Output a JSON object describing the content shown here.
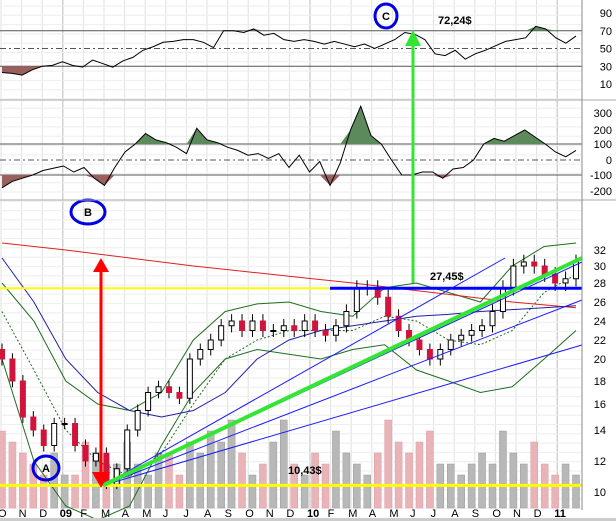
{
  "chart_data": {
    "type": "line",
    "title": "",
    "price_scale": "log",
    "grid": true,
    "x_tick_labels": [
      "O",
      "N",
      "D",
      "09",
      "F",
      "M",
      "A",
      "M",
      "J",
      "J",
      "A",
      "S",
      "O",
      "N",
      "D",
      "10",
      "F",
      "M",
      "A",
      "M",
      "J",
      "J",
      "A",
      "S",
      "O",
      "N",
      "D",
      "11"
    ],
    "rsi": {
      "y_ticks": [
        90,
        70,
        50,
        30,
        10
      ],
      "levels": [
        70,
        50,
        30
      ],
      "values": [
        23,
        22,
        20,
        26,
        30,
        31,
        35,
        31,
        29,
        37,
        33,
        29,
        36,
        40,
        48,
        52,
        57,
        58,
        60,
        60,
        57,
        51,
        70,
        70,
        68,
        72,
        65,
        67,
        60,
        58,
        60,
        58,
        55,
        58,
        55,
        52,
        55,
        50,
        55,
        60,
        68,
        66,
        60,
        44,
        42,
        48,
        38,
        44,
        48,
        53,
        58,
        60,
        62,
        75,
        72,
        62,
        56,
        64
      ]
    },
    "cci": {
      "y_ticks": [
        300,
        200,
        100,
        0,
        -100,
        -200
      ],
      "levels": [
        100,
        0,
        -100
      ],
      "values": [
        -180,
        -140,
        -120,
        -100,
        -70,
        -55,
        -40,
        -80,
        -50,
        -120,
        -165,
        -50,
        50,
        100,
        175,
        130,
        110,
        80,
        40,
        210,
        130,
        110,
        80,
        60,
        30,
        40,
        10,
        40,
        -50,
        30,
        -80,
        -10,
        -165,
        -20,
        200,
        330,
        160,
        100,
        0,
        -100,
        -100,
        -80,
        -80,
        -120,
        -60,
        -50,
        0,
        100,
        140,
        120,
        160,
        200,
        150,
        100,
        50,
        20,
        60
      ]
    },
    "price": {
      "y_ticks": [
        32,
        30,
        28,
        26,
        24,
        22,
        20,
        18,
        16,
        14,
        12,
        10
      ],
      "closes": [
        20,
        18,
        15,
        14,
        13,
        14.5,
        14.5,
        13,
        12,
        12.5,
        10.5,
        11.5,
        14,
        15.5,
        17,
        17.5,
        17,
        16.5,
        20,
        21,
        22,
        23.5,
        24,
        23,
        24,
        23,
        23,
        23.5,
        23,
        24,
        23,
        22.5,
        23.5,
        25,
        27.5,
        27.5,
        26.5,
        24.5,
        23,
        22,
        21,
        20,
        21,
        22,
        22.5,
        23,
        23.5,
        25,
        27.5,
        30,
        30.5,
        30,
        29,
        28,
        28.5,
        30.5
      ],
      "ma_red": [
        33,
        32.5,
        32,
        31.5,
        31,
        30.5,
        30,
        29.6,
        29.2,
        28.8,
        28.4,
        28,
        27.6,
        27.2,
        26.8,
        26.4,
        26,
        25.7,
        25.4
      ],
      "ma_blue": [
        31,
        26,
        20,
        17,
        15.5,
        15,
        15.5,
        17,
        20,
        22,
        23,
        23.5,
        24,
        24.5,
        24.7,
        25,
        25.2,
        25.4,
        25.6
      ],
      "bb_upper": [
        28,
        24,
        18,
        16,
        15.5,
        17,
        22,
        25,
        25.8,
        26,
        25,
        24.5,
        27.5,
        28,
        27,
        26,
        30,
        32.5,
        33
      ],
      "bb_lower": [
        20,
        12,
        9,
        8,
        9,
        13,
        17,
        20,
        21,
        20.5,
        20,
        21,
        21.5,
        19,
        18,
        17,
        17.5,
        20,
        23
      ],
      "bb_mid": [
        25,
        19,
        14,
        12,
        11,
        12.5,
        16,
        20,
        22,
        23,
        23,
        23,
        24.5,
        24,
        22,
        21.5,
        23,
        27,
        29
      ]
    },
    "volume": [
      7,
      6,
      5,
      4,
      3,
      5,
      3,
      3,
      6,
      5,
      4,
      4,
      6,
      4,
      3,
      5,
      5,
      3,
      6,
      5,
      7,
      6,
      8,
      5,
      3,
      4,
      6,
      8,
      4,
      3,
      5,
      4,
      7,
      5,
      4,
      3,
      5,
      8,
      6,
      5,
      6,
      7,
      4,
      4,
      3,
      4,
      5,
      4,
      7,
      5,
      4,
      6,
      4,
      3,
      4,
      3
    ],
    "annotations": {
      "level_high": "27,45$",
      "level_low": "10,43$",
      "target": "72,24$",
      "marker_a": "A",
      "marker_b": "B",
      "marker_c": "C"
    },
    "colors": {
      "up_candle": "#ffffff",
      "down_candle": "#d0143c",
      "ma_red": "#e02020",
      "ma_blue": "#2020a0",
      "bollinger": "#1e6e1e",
      "support_line": "#ffff00",
      "trend_green": "#33e633",
      "fan_blue": "#1a1aff",
      "overbought_fill": "#5c8a5c",
      "oversold_fill": "#9a6060"
    }
  }
}
